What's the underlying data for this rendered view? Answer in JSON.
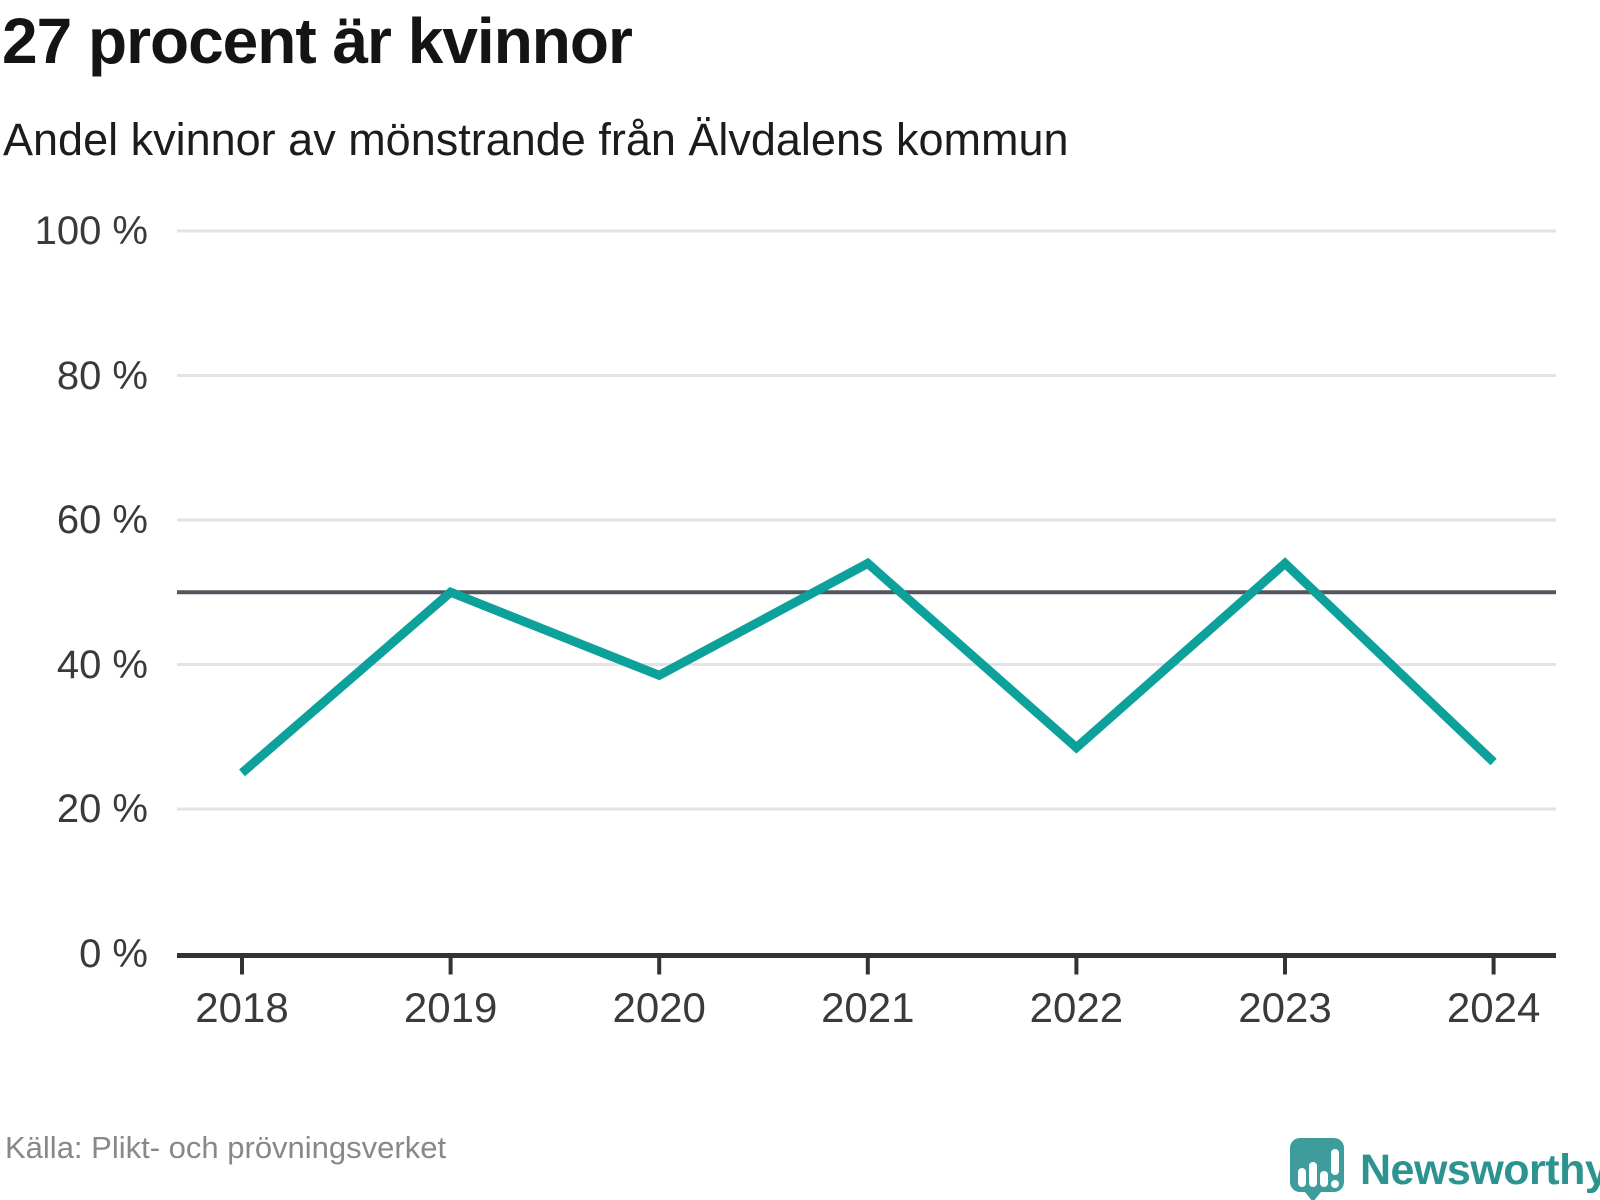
{
  "header": {
    "title": "27 procent är kvinnor",
    "subtitle": "Andel kvinnor av mönstrande från Älvdalens kommun"
  },
  "footer": {
    "source": "Källa: Plikt- och prövningsverket",
    "brand": "Newsworthy"
  },
  "chart_data": {
    "type": "line",
    "title": "27 procent är kvinnor",
    "subtitle": "Andel kvinnor av mönstrande från Älvdalens kommun",
    "categories": [
      "2018",
      "2019",
      "2020",
      "2021",
      "2022",
      "2023",
      "2024"
    ],
    "series": [
      {
        "name": "Andel kvinnor av mönstrande",
        "values": [
          25,
          50,
          38.5,
          54,
          28.5,
          54,
          26.5
        ]
      }
    ],
    "ylim": [
      0,
      100
    ],
    "yticks": [
      0,
      20,
      40,
      60,
      80,
      100
    ],
    "ytick_suffix": " %",
    "reference_line_value": 50,
    "grid": "horizontal",
    "legend": "none",
    "colors": {
      "line": "#0da19c",
      "reference_line": "#55555f",
      "axis": "#333333",
      "grid": "#e3e3e3",
      "tick_text": "#3a3a3a"
    }
  }
}
